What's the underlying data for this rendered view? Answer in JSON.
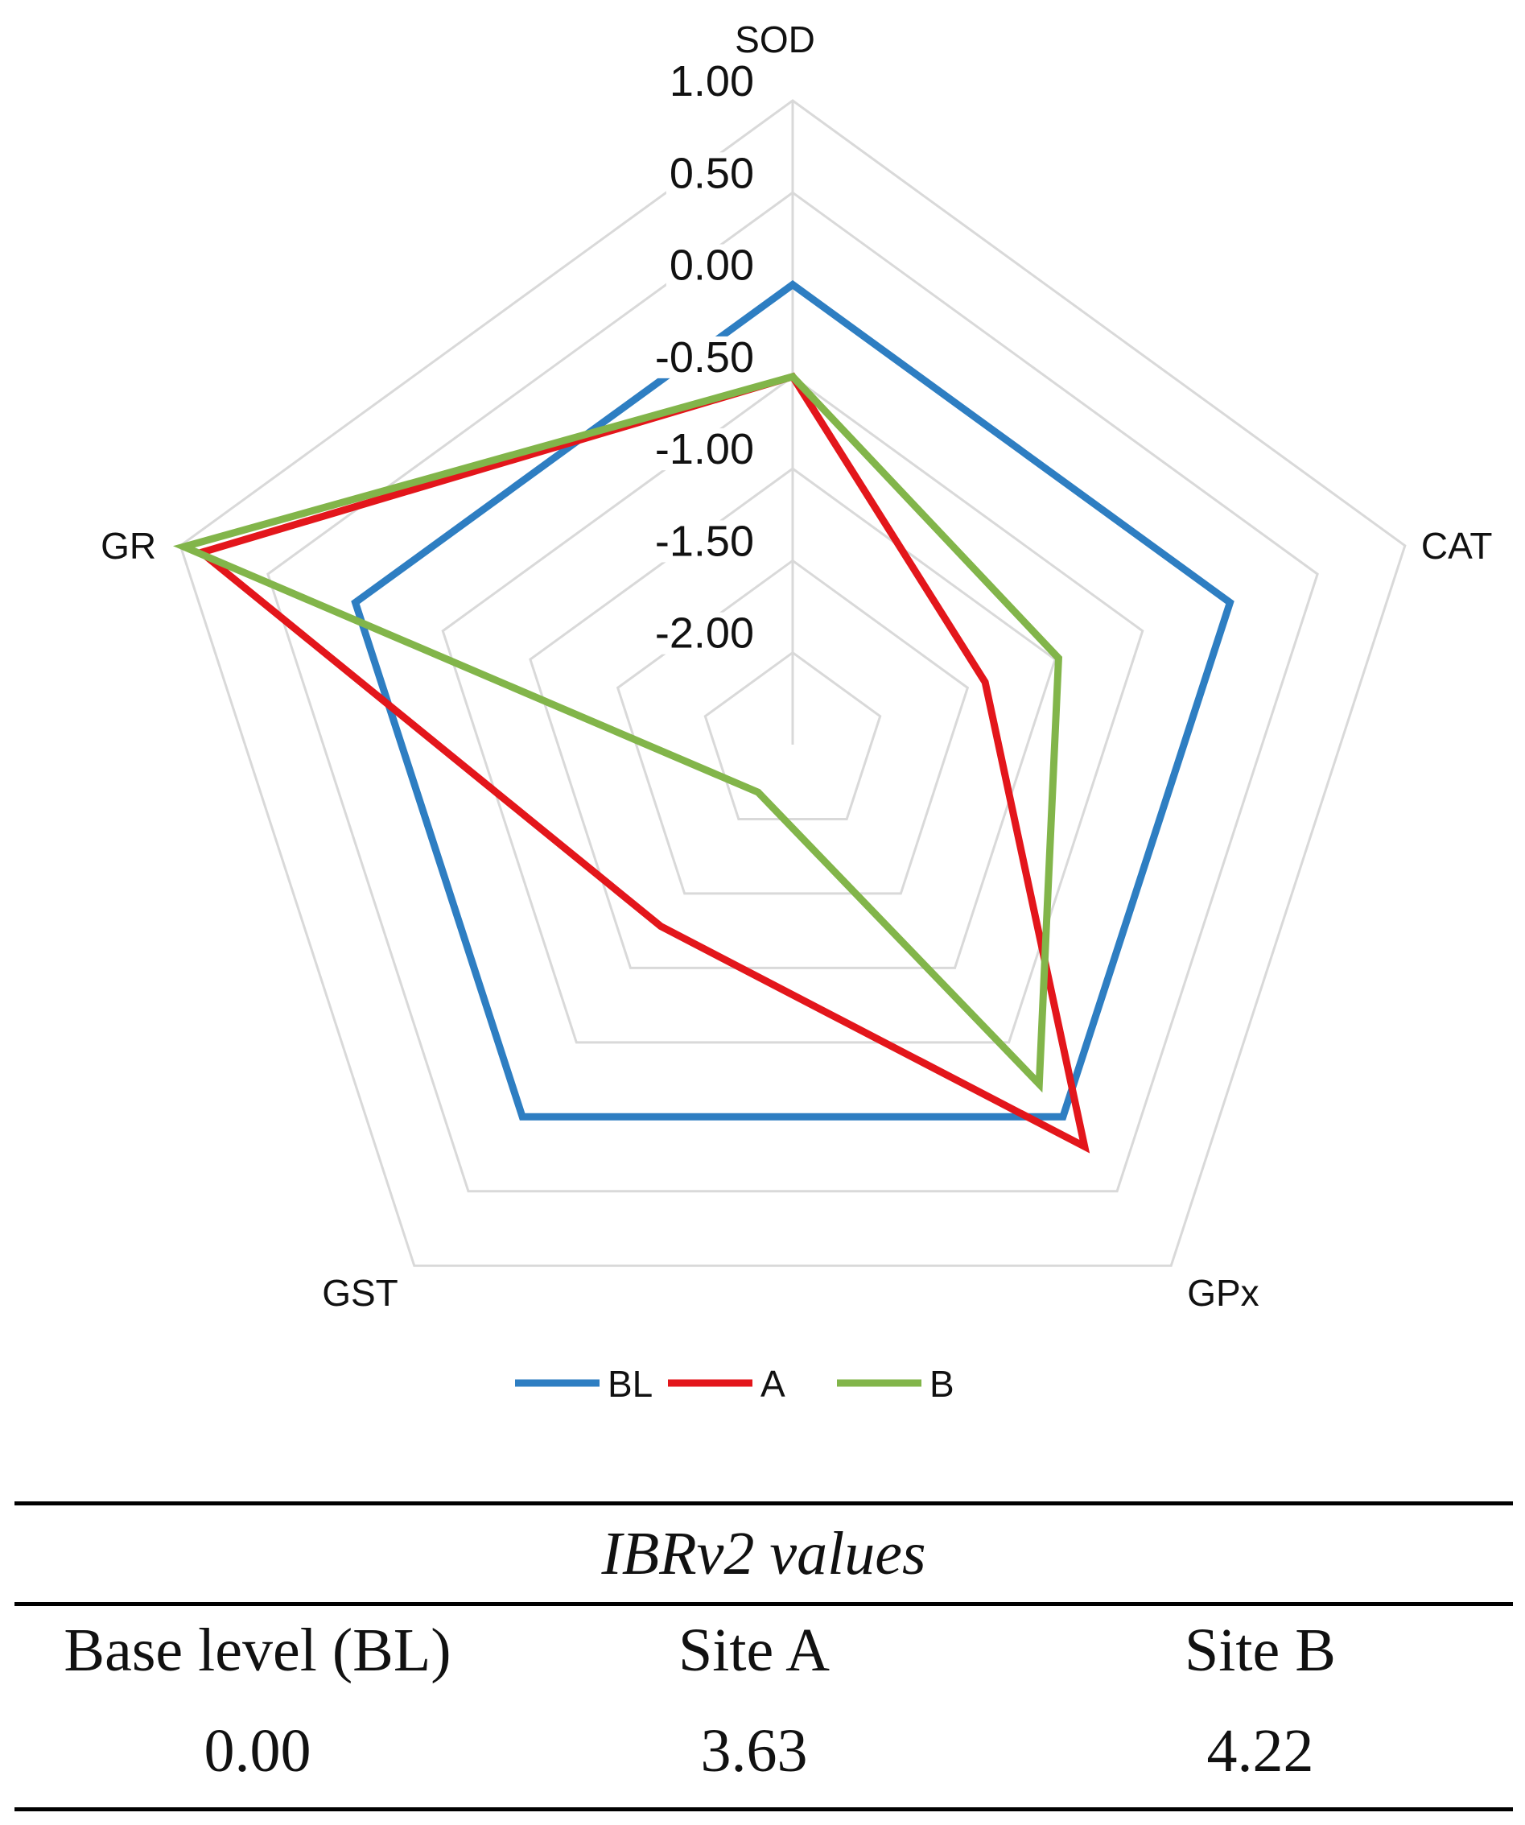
{
  "chart_data": {
    "type": "radar",
    "axes": [
      "SOD",
      "CAT",
      "GPx",
      "GST",
      "GR"
    ],
    "rlim": [
      -2.5,
      1.0
    ],
    "ticks": [
      1.0,
      0.5,
      0.0,
      -0.5,
      -1.0,
      -1.5,
      -2.0
    ],
    "tick_labels": [
      "1.00",
      "0.50",
      "0.00",
      "-0.50",
      "-1.00",
      "-1.50",
      "-2.00"
    ],
    "grid": true,
    "legend_position": "bottom",
    "series": [
      {
        "name": "BL",
        "color": "#2e7ec2",
        "values": [
          0.0,
          0.0,
          0.0,
          0.0,
          0.0
        ]
      },
      {
        "name": "A",
        "color": "#e3161b",
        "values": [
          -0.5,
          -1.4,
          0.2,
          -1.28,
          0.88
        ]
      },
      {
        "name": "B",
        "color": "#82b54a",
        "values": [
          -0.5,
          -0.98,
          -0.22,
          -2.18,
          0.98
        ]
      }
    ]
  },
  "table": {
    "title": "IBRv2 values",
    "headers": [
      "Base level (BL)",
      "Site A",
      "Site B"
    ],
    "values": [
      "0.00",
      "3.63",
      "4.22"
    ]
  }
}
